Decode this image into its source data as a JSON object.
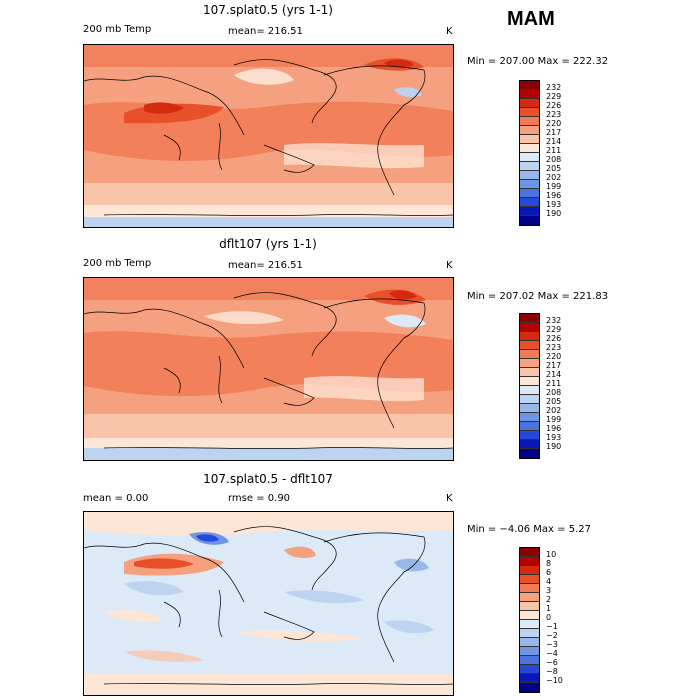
{
  "season": "MAM",
  "panels": [
    {
      "title": "107.splat0.5 (yrs 1-1)",
      "left_label": "200 mb Temp",
      "center_label": "mean= 216.51",
      "units": "K",
      "minmax": "Min = 207.00 Max = 222.32",
      "colorbar": {
        "labels": [
          "232",
          "229",
          "226",
          "223",
          "220",
          "217",
          "214",
          "211",
          "208",
          "205",
          "202",
          "199",
          "196",
          "193",
          "190"
        ],
        "colors": [
          "#8b0000",
          "#b30000",
          "#d42a10",
          "#e8502a",
          "#f07a55",
          "#f5a07e",
          "#f9c4a9",
          "#fde6d6",
          "#dce9f7",
          "#bdd3f0",
          "#98b8ec",
          "#6f96e6",
          "#4a73e0",
          "#2747d6",
          "#0a18b8",
          "#000088"
        ]
      }
    },
    {
      "title": "dflt107 (yrs 1-1)",
      "left_label": "200 mb Temp",
      "center_label": "mean= 216.51",
      "units": "K",
      "minmax": "Min = 207.02 Max = 221.83",
      "colorbar": {
        "labels": [
          "232",
          "229",
          "226",
          "223",
          "220",
          "217",
          "214",
          "211",
          "208",
          "205",
          "202",
          "199",
          "196",
          "193",
          "190"
        ],
        "colors": [
          "#8b0000",
          "#b30000",
          "#d42a10",
          "#e8502a",
          "#f07a55",
          "#f5a07e",
          "#f9c4a9",
          "#fde6d6",
          "#dce9f7",
          "#bdd3f0",
          "#98b8ec",
          "#6f96e6",
          "#4a73e0",
          "#2747d6",
          "#0a18b8",
          "#000088"
        ]
      }
    },
    {
      "title": "107.splat0.5 - dflt107",
      "left_label": "mean =    0.00",
      "center_label": "rmse =    0.90",
      "units": "K",
      "minmax": "Min =  −4.06 Max =    5.27",
      "colorbar": {
        "labels": [
          "10",
          "8",
          "6",
          "4",
          "3",
          "2",
          "1",
          "0",
          "−1",
          "−2",
          "−3",
          "−4",
          "−6",
          "−8",
          "−10"
        ],
        "colors": [
          "#8b0000",
          "#b30000",
          "#d42a10",
          "#e8502a",
          "#f07a55",
          "#f5a07e",
          "#f9c4a9",
          "#fde6d6",
          "#dce9f7",
          "#bdd3f0",
          "#98b8ec",
          "#6f96e6",
          "#4a73e0",
          "#2747d6",
          "#0a18b8",
          "#000088"
        ]
      }
    }
  ]
}
